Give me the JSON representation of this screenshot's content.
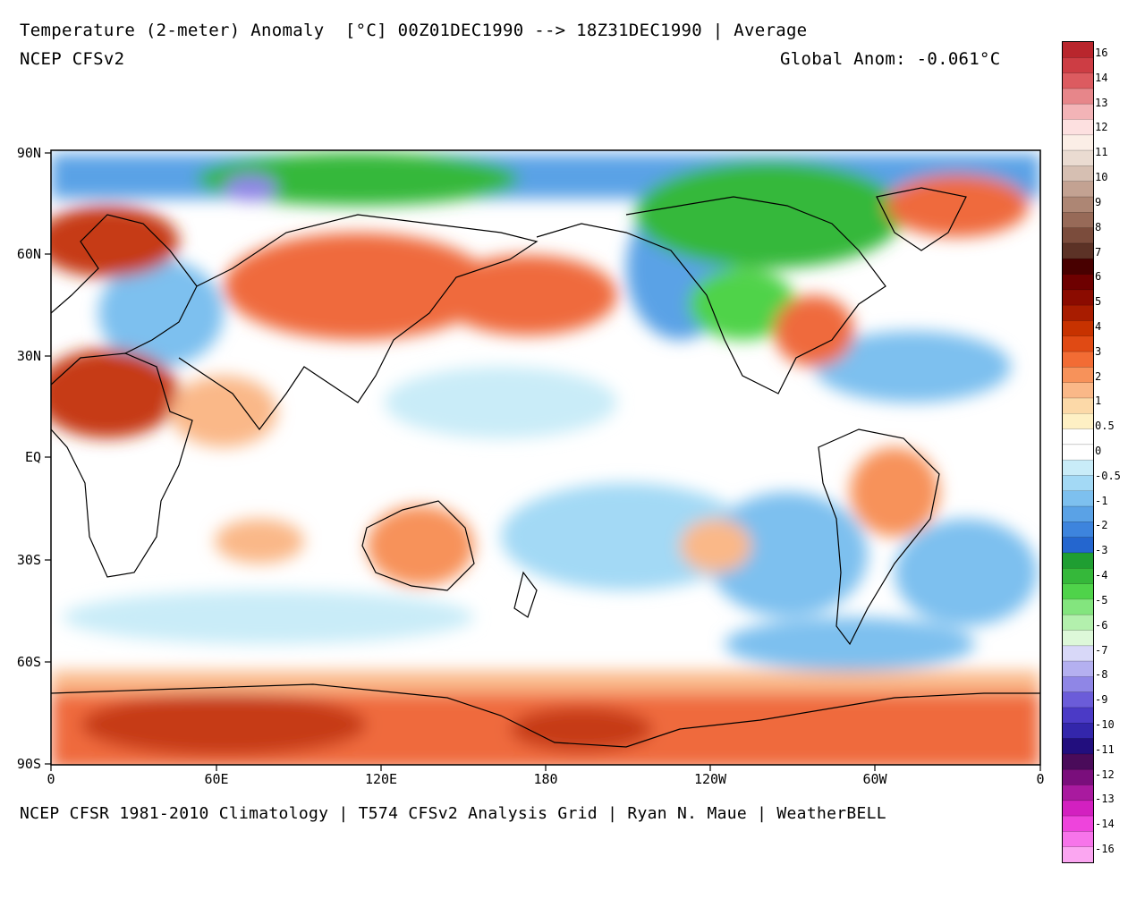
{
  "header": {
    "title": "Temperature (2-meter) Anomaly  [°C] 00Z01DEC1990 --> 18Z31DEC1990 | Average",
    "model": "NCEP CFSv2",
    "global_anom": "Global Anom: -0.061°C"
  },
  "footer": {
    "credit": "NCEP CFSR 1981-2010 Climatology | T574 CFSv2 Analysis Grid | Ryan N. Maue | WeatherBELL"
  },
  "axes": {
    "lat_ticks": [
      "90N",
      "60N",
      "30N",
      "EQ",
      "30S",
      "60S",
      "90S"
    ],
    "lon_ticks": [
      "0",
      "60E",
      "120E",
      "180",
      "120W",
      "60W",
      "0"
    ]
  },
  "colorbar": {
    "labels": [
      "16",
      "14",
      "13",
      "12",
      "11",
      "10",
      "9",
      "8",
      "7",
      "6",
      "5",
      "4",
      "3",
      "2",
      "1",
      "0.5",
      "0",
      "-0.5",
      "-1",
      "-2",
      "-3",
      "-4",
      "-5",
      "-6",
      "-7",
      "-8",
      "-9",
      "-10",
      "-11",
      "-12",
      "-13",
      "-14",
      "-16"
    ],
    "colors": [
      "#b9262d",
      "#cd3d44",
      "#dc5b60",
      "#e7868a",
      "#f3b4b7",
      "#fde0e0",
      "#fbeee6",
      "#eadbd1",
      "#d6bfb2",
      "#c3a292",
      "#ad8674",
      "#976a58",
      "#7b4c3c",
      "#5c3226",
      "#480000",
      "#6e0000",
      "#8b0b00",
      "#a81c00",
      "#c73200",
      "#e04a14",
      "#f26c34",
      "#f7925a",
      "#fab888",
      "#fcd9a8",
      "#fef0c4",
      "#ffffff",
      "#ffffff",
      "#c9ecf8",
      "#a3d9f5",
      "#7dc0ef",
      "#5aa2e6",
      "#3d84dd",
      "#2466cf",
      "#1f9e32",
      "#35b83a",
      "#4fd34a",
      "#83e57e",
      "#b3f0ad",
      "#ddf8d9",
      "#d8d8f8",
      "#b4b0f0",
      "#8f86e6",
      "#6b5cd9",
      "#4b3ac6",
      "#3326ab",
      "#220e7e",
      "#4a0b5a",
      "#7a0e7c",
      "#a91a9f",
      "#d320c0",
      "#ee44dc",
      "#f774ea",
      "#fba6f1"
    ],
    "zero_index": 16
  },
  "map_data": {
    "field": "2-meter temperature anomaly",
    "units": "°C",
    "period": "00Z01DEC1990 --> 18Z31DEC1990",
    "global_anomaly": -0.061
  },
  "palette": {
    "frame": "#000000",
    "coast": "#000000",
    "warm_strong": "#c63a17",
    "warm": "#ef6a3c",
    "warm_light": "#fab888",
    "neutral": "#ffffff",
    "cool_light": "#a3d9f5",
    "cool": "#5aa2e6",
    "cool_strong": "#2466cf",
    "green": "#35b83a",
    "purple": "#8f86e6"
  }
}
